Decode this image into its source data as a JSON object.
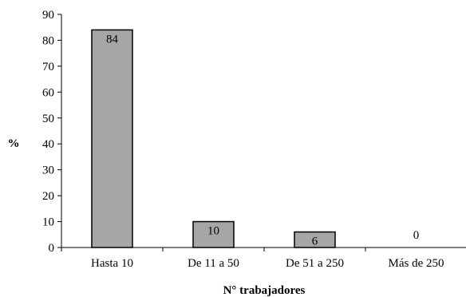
{
  "chart_data": {
    "type": "bar",
    "categories": [
      "Hasta 10",
      "De 11 a 50",
      "De 51 a 250",
      "Más de 250"
    ],
    "values": [
      84,
      10,
      6,
      0
    ],
    "data_labels": [
      "84",
      "10",
      "6",
      "0"
    ],
    "title": "",
    "xlabel": "N° trabajadores",
    "ylabel": "%",
    "ylim": [
      0,
      90
    ],
    "yticks": [
      "0",
      "10",
      "20",
      "30",
      "40",
      "50",
      "60",
      "70",
      "80",
      "90"
    ],
    "grid": false,
    "legend": "none",
    "colors": {
      "bar_fill": "#a6a6a6",
      "bar_stroke": "#000000",
      "axis": "#000000"
    }
  }
}
